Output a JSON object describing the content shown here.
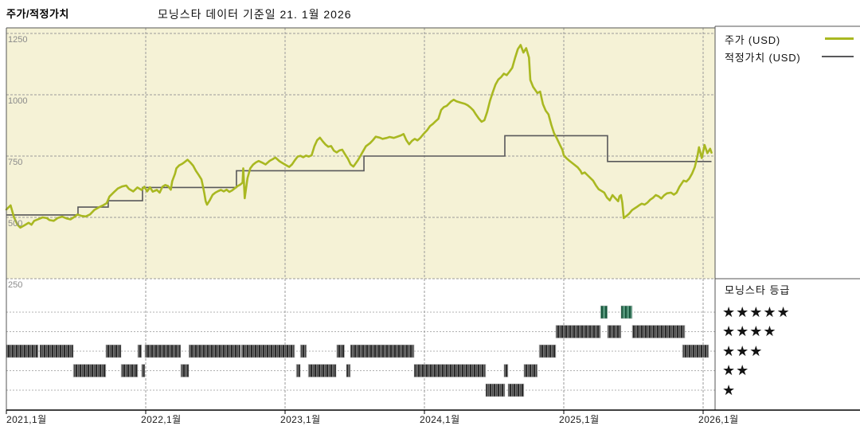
{
  "header": {
    "title": "주가/적정가치",
    "as_of": "모닝스타 데이터 기준일 21. 1월 2026"
  },
  "legend": {
    "price_label": "주가 (USD)",
    "fair_value_label": "적정가치 (USD)"
  },
  "rating_legend": {
    "title": "모닝스타 등급",
    "rows": [
      {
        "count": 5,
        "stars_text": "★★★★★"
      },
      {
        "count": 4,
        "stars_text": "★★★★"
      },
      {
        "count": 3,
        "stars_text": "★★★"
      },
      {
        "count": 2,
        "stars_text": "★★"
      },
      {
        "count": 1,
        "stars_text": "★"
      }
    ]
  },
  "colors": {
    "plot_bg": "#f5f2d6",
    "price_line": "#a9b821",
    "fair_value_line": "#58585a",
    "rating_bar_dark": "#2a2a2a",
    "rating_bar_mid": "#8f8f8f",
    "rating_bar_5star_dark": "#14543a",
    "rating_bar_5star_light": "#7fb39b",
    "grid": "#9a9a9a",
    "row_grid": "#b0b0b0",
    "border": "#555555",
    "axis_line": "#000000",
    "axis_label": "#8a8a8a",
    "text": "#111111"
  },
  "chart_data": {
    "type": "line",
    "title": "주가/적정가치",
    "subtitle": "모닝스타 데이터 기준일 21. 1월 2026",
    "x_axis": {
      "unit": "years_since_2021_jan",
      "range": [
        0,
        5.09
      ],
      "tick_positions_years": [
        0,
        1,
        2,
        3,
        4,
        5
      ],
      "tick_labels": [
        "2021,1월",
        "2022,1월",
        "2023,1월",
        "2024,1월",
        "2025,1월",
        "2026,1월"
      ]
    },
    "y_axis": {
      "unit": "USD",
      "range": [
        160,
        1300
      ],
      "tick_values": [
        1250,
        1000,
        750,
        500,
        250
      ],
      "tick_labels": [
        "1250",
        "1000",
        "750",
        "500",
        "250"
      ]
    },
    "series": [
      {
        "name": "주가 (USD)",
        "type": "line",
        "points": [
          [
            0.0,
            532
          ],
          [
            0.03,
            549
          ],
          [
            0.055,
            500
          ],
          [
            0.08,
            470
          ],
          [
            0.1,
            458
          ],
          [
            0.13,
            468
          ],
          [
            0.16,
            478
          ],
          [
            0.18,
            470
          ],
          [
            0.2,
            486
          ],
          [
            0.23,
            493
          ],
          [
            0.26,
            500
          ],
          [
            0.29,
            497
          ],
          [
            0.31,
            489
          ],
          [
            0.34,
            486
          ],
          [
            0.37,
            498
          ],
          [
            0.4,
            503
          ],
          [
            0.43,
            496
          ],
          [
            0.46,
            492
          ],
          [
            0.49,
            503
          ],
          [
            0.51,
            512
          ],
          [
            0.54,
            506
          ],
          [
            0.57,
            504
          ],
          [
            0.6,
            512
          ],
          [
            0.63,
            530
          ],
          [
            0.66,
            540
          ],
          [
            0.69,
            548
          ],
          [
            0.72,
            558
          ],
          [
            0.74,
            585
          ],
          [
            0.77,
            602
          ],
          [
            0.8,
            618
          ],
          [
            0.83,
            626
          ],
          [
            0.86,
            630
          ],
          [
            0.88,
            616
          ],
          [
            0.91,
            606
          ],
          [
            0.94,
            622
          ],
          [
            0.97,
            612
          ],
          [
            0.99,
            625
          ],
          [
            1.01,
            606
          ],
          [
            1.03,
            623
          ],
          [
            1.05,
            605
          ],
          [
            1.08,
            612
          ],
          [
            1.1,
            601
          ],
          [
            1.12,
            625
          ],
          [
            1.14,
            632
          ],
          [
            1.16,
            628
          ],
          [
            1.18,
            613
          ],
          [
            1.19,
            648
          ],
          [
            1.21,
            678
          ],
          [
            1.22,
            700
          ],
          [
            1.24,
            712
          ],
          [
            1.26,
            718
          ],
          [
            1.28,
            726
          ],
          [
            1.3,
            735
          ],
          [
            1.32,
            724
          ],
          [
            1.34,
            711
          ],
          [
            1.36,
            690
          ],
          [
            1.38,
            673
          ],
          [
            1.4,
            655
          ],
          [
            1.41,
            628
          ],
          [
            1.42,
            600
          ],
          [
            1.43,
            566
          ],
          [
            1.44,
            552
          ],
          [
            1.46,
            570
          ],
          [
            1.48,
            592
          ],
          [
            1.5,
            601
          ],
          [
            1.52,
            607
          ],
          [
            1.54,
            612
          ],
          [
            1.56,
            606
          ],
          [
            1.58,
            613
          ],
          [
            1.6,
            604
          ],
          [
            1.62,
            610
          ],
          [
            1.64,
            619
          ],
          [
            1.66,
            628
          ],
          [
            1.68,
            634
          ],
          [
            1.695,
            642
          ],
          [
            1.7,
            700
          ],
          [
            1.71,
            578
          ],
          [
            1.73,
            660
          ],
          [
            1.75,
            700
          ],
          [
            1.77,
            715
          ],
          [
            1.79,
            724
          ],
          [
            1.81,
            730
          ],
          [
            1.84,
            722
          ],
          [
            1.86,
            716
          ],
          [
            1.89,
            731
          ],
          [
            1.91,
            737
          ],
          [
            1.93,
            744
          ],
          [
            1.96,
            729
          ],
          [
            1.98,
            722
          ],
          [
            2.01,
            712
          ],
          [
            2.03,
            706
          ],
          [
            2.05,
            716
          ],
          [
            2.07,
            733
          ],
          [
            2.09,
            748
          ],
          [
            2.11,
            751
          ],
          [
            2.13,
            745
          ],
          [
            2.15,
            752
          ],
          [
            2.17,
            748
          ],
          [
            2.19,
            753
          ],
          [
            2.21,
            790
          ],
          [
            2.23,
            815
          ],
          [
            2.25,
            825
          ],
          [
            2.27,
            810
          ],
          [
            2.29,
            797
          ],
          [
            2.31,
            788
          ],
          [
            2.33,
            791
          ],
          [
            2.35,
            772
          ],
          [
            2.37,
            765
          ],
          [
            2.39,
            773
          ],
          [
            2.41,
            776
          ],
          [
            2.43,
            757
          ],
          [
            2.45,
            740
          ],
          [
            2.47,
            716
          ],
          [
            2.49,
            707
          ],
          [
            2.52,
            731
          ],
          [
            2.54,
            750
          ],
          [
            2.56,
            770
          ],
          [
            2.58,
            790
          ],
          [
            2.61,
            803
          ],
          [
            2.63,
            815
          ],
          [
            2.65,
            829
          ],
          [
            2.68,
            825
          ],
          [
            2.7,
            820
          ],
          [
            2.73,
            824
          ],
          [
            2.75,
            828
          ],
          [
            2.78,
            824
          ],
          [
            2.8,
            828
          ],
          [
            2.83,
            834
          ],
          [
            2.85,
            840
          ],
          [
            2.87,
            815
          ],
          [
            2.89,
            798
          ],
          [
            2.91,
            812
          ],
          [
            2.93,
            820
          ],
          [
            2.95,
            814
          ],
          [
            2.97,
            824
          ],
          [
            2.99,
            838
          ],
          [
            3.02,
            856
          ],
          [
            3.04,
            872
          ],
          [
            3.06,
            881
          ],
          [
            3.08,
            892
          ],
          [
            3.1,
            902
          ],
          [
            3.12,
            938
          ],
          [
            3.14,
            950
          ],
          [
            3.16,
            955
          ],
          [
            3.19,
            972
          ],
          [
            3.21,
            980
          ],
          [
            3.23,
            973
          ],
          [
            3.26,
            968
          ],
          [
            3.29,
            963
          ],
          [
            3.31,
            957
          ],
          [
            3.33,
            948
          ],
          [
            3.35,
            937
          ],
          [
            3.37,
            919
          ],
          [
            3.39,
            903
          ],
          [
            3.41,
            890
          ],
          [
            3.43,
            896
          ],
          [
            3.45,
            930
          ],
          [
            3.47,
            975
          ],
          [
            3.49,
            1010
          ],
          [
            3.51,
            1042
          ],
          [
            3.53,
            1062
          ],
          [
            3.55,
            1072
          ],
          [
            3.57,
            1086
          ],
          [
            3.59,
            1080
          ],
          [
            3.61,
            1094
          ],
          [
            3.63,
            1110
          ],
          [
            3.65,
            1150
          ],
          [
            3.67,
            1186
          ],
          [
            3.69,
            1203
          ],
          [
            3.71,
            1172
          ],
          [
            3.73,
            1190
          ],
          [
            3.75,
            1152
          ],
          [
            3.76,
            1060
          ],
          [
            3.78,
            1032
          ],
          [
            3.81,
            1007
          ],
          [
            3.83,
            1013
          ],
          [
            3.85,
            962
          ],
          [
            3.87,
            935
          ],
          [
            3.89,
            920
          ],
          [
            3.91,
            878
          ],
          [
            3.93,
            843
          ],
          [
            3.95,
            822
          ],
          [
            3.97,
            798
          ],
          [
            3.99,
            775
          ],
          [
            4.0,
            753
          ],
          [
            4.02,
            741
          ],
          [
            4.04,
            731
          ],
          [
            4.06,
            722
          ],
          [
            4.08,
            713
          ],
          [
            4.1,
            704
          ],
          [
            4.12,
            690
          ],
          [
            4.13,
            678
          ],
          [
            4.15,
            683
          ],
          [
            4.17,
            672
          ],
          [
            4.19,
            661
          ],
          [
            4.21,
            650
          ],
          [
            4.23,
            631
          ],
          [
            4.25,
            615
          ],
          [
            4.27,
            608
          ],
          [
            4.29,
            601
          ],
          [
            4.31,
            581
          ],
          [
            4.33,
            569
          ],
          [
            4.35,
            591
          ],
          [
            4.37,
            578
          ],
          [
            4.39,
            566
          ],
          [
            4.4,
            586
          ],
          [
            4.41,
            591
          ],
          [
            4.42,
            560
          ],
          [
            4.43,
            497
          ],
          [
            4.45,
            506
          ],
          [
            4.47,
            516
          ],
          [
            4.49,
            530
          ],
          [
            4.52,
            541
          ],
          [
            4.54,
            549
          ],
          [
            4.56,
            556
          ],
          [
            4.58,
            552
          ],
          [
            4.6,
            560
          ],
          [
            4.62,
            572
          ],
          [
            4.64,
            580
          ],
          [
            4.66,
            591
          ],
          [
            4.68,
            586
          ],
          [
            4.7,
            577
          ],
          [
            4.72,
            590
          ],
          [
            4.74,
            598
          ],
          [
            4.77,
            601
          ],
          [
            4.79,
            593
          ],
          [
            4.81,
            601
          ],
          [
            4.83,
            625
          ],
          [
            4.86,
            650
          ],
          [
            4.88,
            646
          ],
          [
            4.9,
            658
          ],
          [
            4.92,
            678
          ],
          [
            4.94,
            705
          ],
          [
            4.96,
            752
          ],
          [
            4.97,
            786
          ],
          [
            4.99,
            742
          ],
          [
            5.01,
            795
          ],
          [
            5.03,
            762
          ],
          [
            5.05,
            780
          ],
          [
            5.06,
            764
          ]
        ]
      },
      {
        "name": "적정가치 (USD)",
        "type": "step",
        "steps": [
          {
            "from": 0.0,
            "to": 0.514,
            "value": 510
          },
          {
            "from": 0.514,
            "to": 0.731,
            "value": 542
          },
          {
            "from": 0.731,
            "to": 0.977,
            "value": 568
          },
          {
            "from": 0.977,
            "to": 1.651,
            "value": 622
          },
          {
            "from": 1.651,
            "to": 2.566,
            "value": 690
          },
          {
            "from": 2.566,
            "to": 3.577,
            "value": 750
          },
          {
            "from": 3.577,
            "to": 4.314,
            "value": 833
          },
          {
            "from": 4.314,
            "to": 5.06,
            "value": 728
          }
        ]
      }
    ],
    "ratings": [
      {
        "stars": 5,
        "segments": [
          [
            4.263,
            4.314
          ],
          [
            4.411,
            4.491
          ]
        ]
      },
      {
        "stars": 4,
        "segments": [
          [
            3.943,
            4.263
          ],
          [
            4.314,
            4.411
          ],
          [
            4.491,
            4.869
          ]
        ]
      },
      {
        "stars": 3,
        "segments": [
          [
            0.0,
            0.229
          ],
          [
            0.24,
            0.48
          ],
          [
            0.714,
            0.823
          ],
          [
            0.943,
            0.971
          ],
          [
            0.994,
            1.251
          ],
          [
            1.309,
            1.68
          ],
          [
            1.686,
            2.069
          ],
          [
            2.109,
            2.154
          ],
          [
            2.371,
            2.426
          ],
          [
            2.469,
            2.926
          ],
          [
            3.823,
            3.943
          ],
          [
            4.851,
            5.04
          ]
        ]
      },
      {
        "stars": 2,
        "segments": [
          [
            0.48,
            0.714
          ],
          [
            0.823,
            0.943
          ],
          [
            0.971,
            0.994
          ],
          [
            1.251,
            1.309
          ],
          [
            2.08,
            2.109
          ],
          [
            2.166,
            2.366
          ],
          [
            2.44,
            2.469
          ],
          [
            2.926,
            3.44
          ],
          [
            3.571,
            3.6
          ],
          [
            3.714,
            3.811
          ]
        ]
      },
      {
        "stars": 1,
        "segments": [
          [
            3.44,
            3.577
          ],
          [
            3.6,
            3.714
          ]
        ]
      }
    ],
    "legend_position": "right",
    "grid": true
  }
}
